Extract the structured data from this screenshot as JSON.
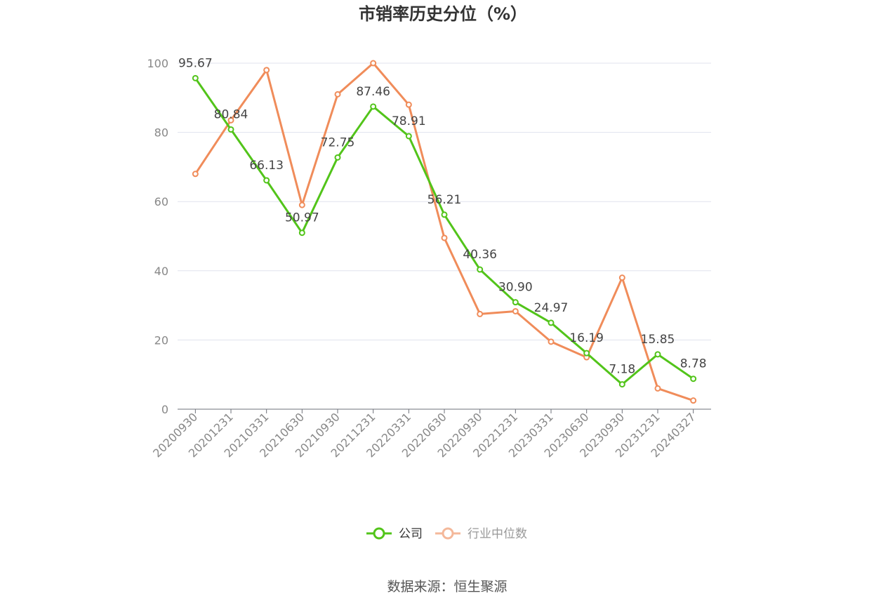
{
  "title": "市销率历史分位（%）",
  "source": "数据来源：恒生聚源",
  "chart_data": {
    "type": "line",
    "title": "市销率历史分位（%）",
    "categories": [
      "20200930",
      "20201231",
      "20210331",
      "20210630",
      "20210930",
      "20211231",
      "20220331",
      "20220630",
      "20220930",
      "20221231",
      "20230331",
      "20230630",
      "20230930",
      "20231231",
      "20240327"
    ],
    "ylim": [
      0,
      100
    ],
    "yticks": [
      0,
      20,
      40,
      60,
      80,
      100
    ],
    "grid": true,
    "legend_position": "bottom",
    "series": [
      {
        "name": "公司",
        "color": "#52c41a",
        "show_labels": true,
        "values": [
          95.67,
          80.84,
          66.13,
          50.97,
          72.75,
          87.46,
          78.91,
          56.21,
          40.36,
          30.9,
          24.97,
          16.19,
          7.18,
          15.85,
          8.78
        ],
        "labels": [
          "95.67",
          "80.84",
          "66.13",
          "50.97",
          "72.75",
          "87.46",
          "78.91",
          "56.21",
          "40.36",
          "30.90",
          "24.97",
          "16.19",
          "7.18",
          "15.85",
          "8.78"
        ]
      },
      {
        "name": "行业中位数",
        "color": "#f08c5a",
        "legend_color": "#f4b89a",
        "show_labels": false,
        "values": [
          68,
          83.5,
          98,
          59,
          91,
          100,
          88,
          49.5,
          27.5,
          28.3,
          19.5,
          15,
          38,
          6,
          2.5
        ]
      }
    ]
  }
}
